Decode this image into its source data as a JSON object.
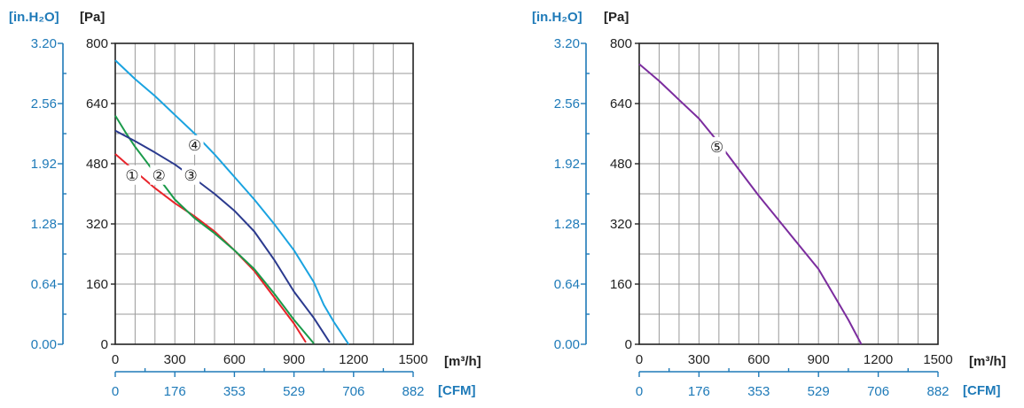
{
  "chart_data": [
    {
      "type": "line",
      "title": "",
      "xlabel": "[m³/h]",
      "xlabel_secondary": "[CFM]",
      "ylabel": "[Pa]",
      "ylabel_secondary": "[in.H₂O]",
      "xlim": [
        0,
        1500
      ],
      "ylim": [
        0,
        800
      ],
      "grid": true,
      "x_ticks": [
        "0",
        "300",
        "600",
        "900",
        "1200",
        "1500"
      ],
      "y_ticks": [
        "0",
        "160",
        "320",
        "480",
        "640",
        "800"
      ],
      "x2_ticks": [
        "0",
        "176",
        "353",
        "529",
        "706",
        "882"
      ],
      "y2_ticks": [
        "0.00",
        "0.64",
        "1.28",
        "1.92",
        "2.56",
        "3.20"
      ],
      "series": [
        {
          "name": "1",
          "color": "#e8232a",
          "points": [
            [
              0,
              506
            ],
            [
              100,
              460
            ],
            [
              200,
              415
            ],
            [
              300,
              375
            ],
            [
              400,
              340
            ],
            [
              500,
              300
            ],
            [
              600,
              250
            ],
            [
              700,
              195
            ],
            [
              800,
              125
            ],
            [
              900,
              55
            ],
            [
              960,
              5
            ]
          ]
        },
        {
          "name": "2",
          "color": "#1a9a4a",
          "points": [
            [
              0,
              608
            ],
            [
              50,
              565
            ],
            [
              100,
              525
            ],
            [
              150,
              490
            ],
            [
              200,
              455
            ],
            [
              300,
              385
            ],
            [
              400,
              335
            ],
            [
              500,
              295
            ],
            [
              600,
              250
            ],
            [
              700,
              200
            ],
            [
              800,
              135
            ],
            [
              900,
              65
            ],
            [
              1000,
              2
            ]
          ]
        },
        {
          "name": "3",
          "color": "#2b3a8e",
          "points": [
            [
              0,
              568
            ],
            [
              100,
              540
            ],
            [
              200,
              510
            ],
            [
              300,
              478
            ],
            [
              400,
              440
            ],
            [
              500,
              400
            ],
            [
              600,
              355
            ],
            [
              700,
              300
            ],
            [
              800,
              225
            ],
            [
              900,
              140
            ],
            [
              1000,
              70
            ],
            [
              1080,
              5
            ]
          ]
        },
        {
          "name": "4",
          "color": "#1aa3e0",
          "points": [
            [
              0,
              755
            ],
            [
              100,
              705
            ],
            [
              200,
              660
            ],
            [
              300,
              610
            ],
            [
              400,
              560
            ],
            [
              500,
              505
            ],
            [
              600,
              445
            ],
            [
              700,
              385
            ],
            [
              800,
              320
            ],
            [
              900,
              250
            ],
            [
              1000,
              165
            ],
            [
              1050,
              105
            ],
            [
              1100,
              60
            ],
            [
              1175,
              0
            ]
          ]
        }
      ],
      "markers": [
        {
          "label": "①",
          "x": 85,
          "y": 450
        },
        {
          "label": "②",
          "x": 220,
          "y": 450
        },
        {
          "label": "③",
          "x": 380,
          "y": 450
        },
        {
          "label": "④",
          "x": 400,
          "y": 530
        }
      ]
    },
    {
      "type": "line",
      "title": "",
      "xlabel": "[m³/h]",
      "xlabel_secondary": "[CFM]",
      "ylabel": "[Pa]",
      "ylabel_secondary": "[in.H₂O]",
      "xlim": [
        0,
        1500
      ],
      "ylim": [
        0,
        800
      ],
      "grid": true,
      "x_ticks": [
        "0",
        "300",
        "600",
        "900",
        "1200",
        "1500"
      ],
      "y_ticks": [
        "0",
        "160",
        "320",
        "480",
        "640",
        "800"
      ],
      "x2_ticks": [
        "0",
        "176",
        "353",
        "529",
        "706",
        "882"
      ],
      "y2_ticks": [
        "0.00",
        "0.64",
        "1.28",
        "1.92",
        "2.56",
        "3.20"
      ],
      "series": [
        {
          "name": "5",
          "color": "#7b2c9e",
          "points": [
            [
              0,
              745
            ],
            [
              100,
              700
            ],
            [
              200,
              650
            ],
            [
              300,
              600
            ],
            [
              400,
              535
            ],
            [
              500,
              465
            ],
            [
              600,
              395
            ],
            [
              700,
              330
            ],
            [
              800,
              265
            ],
            [
              900,
              200
            ],
            [
              1000,
              110
            ],
            [
              1050,
              65
            ],
            [
              1115,
              0
            ]
          ]
        }
      ],
      "markers": [
        {
          "label": "⑤",
          "x": 390,
          "y": 525
        }
      ]
    }
  ]
}
